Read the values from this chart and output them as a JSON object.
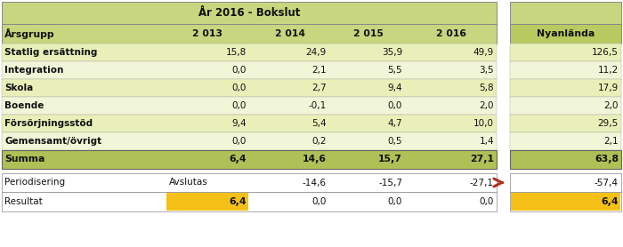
{
  "title": "År 2016 - Bokslut",
  "col_headers": [
    "Årsgrupp",
    "2 013",
    "2 014",
    "2 015",
    "2 016"
  ],
  "nyanlanda_header": "Nyanlända",
  "rows": [
    [
      "Statlig ersättning",
      "15,8",
      "24,9",
      "35,9",
      "49,9",
      "126,5"
    ],
    [
      "Integration",
      "0,0",
      "2,1",
      "5,5",
      "3,5",
      "11,2"
    ],
    [
      "Skola",
      "0,0",
      "2,7",
      "9,4",
      "5,8",
      "17,9"
    ],
    [
      "Boende",
      "0,0",
      "-0,1",
      "0,0",
      "2,0",
      "2,0"
    ],
    [
      "Försörjningsstöd",
      "9,4",
      "5,4",
      "4,7",
      "10,0",
      "29,5"
    ],
    [
      "Gemensamt/övrigt",
      "0,0",
      "0,2",
      "0,5",
      "1,4",
      "2,1"
    ]
  ],
  "summa_row": [
    "Summa",
    "6,4",
    "14,6",
    "15,7",
    "27,1",
    "63,8"
  ],
  "periodisering_row": [
    "Periodisering",
    "Avslutas",
    "-14,6",
    "-15,7",
    "-27,1",
    "-57,4"
  ],
  "resultat_row": [
    "Resultat",
    "6,4",
    "0,0",
    "0,0",
    "0,0",
    "6,4"
  ],
  "color_header": "#c8d67f",
  "color_header2": "#b8ca60",
  "color_row_even": "#e8efb8",
  "color_row_odd": "#f2f6d8",
  "color_summa": "#afc056",
  "color_white": "#ffffff",
  "color_yellow": "#f5c018",
  "color_arrow": "#b03020",
  "color_gap": "#d0d0d0",
  "figw": 7.0,
  "figh": 2.78,
  "dpi": 100
}
